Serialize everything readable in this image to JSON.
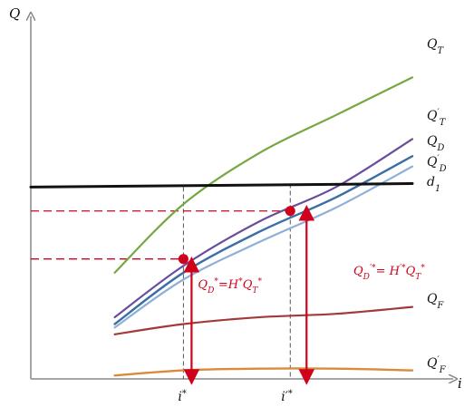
{
  "chart_data": {
    "type": "line",
    "axes": {
      "x_label": "i",
      "y_label": "Q",
      "x_ticks": [
        "i*",
        "i′*"
      ]
    },
    "colors": {
      "Q_T": "#74a840",
      "Q_T_prime": "#6a4c9c",
      "Q_D": "#3a6ea5",
      "Q_D_prime": "#8eb0d8",
      "d1": "#111111",
      "Q_F": "#a33a3a",
      "Q_F_prime": "#d98a3a",
      "annotation": "#d0021b",
      "guide": "#555555"
    },
    "series": [
      {
        "name": "Q_T",
        "x": [
          0.22,
          0.4,
          0.6,
          0.8,
          1.0
        ],
        "y": [
          0.31,
          0.51,
          0.66,
          0.77,
          0.88
        ]
      },
      {
        "name": "Q'_T",
        "x": [
          0.22,
          0.4,
          0.6,
          0.8,
          1.0
        ],
        "y": [
          0.18,
          0.33,
          0.46,
          0.56,
          0.7
        ]
      },
      {
        "name": "Q_D",
        "x": [
          0.22,
          0.4,
          0.6,
          0.8,
          1.0
        ],
        "y": [
          0.16,
          0.31,
          0.43,
          0.53,
          0.65
        ]
      },
      {
        "name": "Q_D'",
        "x": [
          0.22,
          0.4,
          0.6,
          0.8,
          1.0
        ],
        "y": [
          0.15,
          0.29,
          0.4,
          0.5,
          0.62
        ]
      },
      {
        "name": "d_1",
        "x": [
          0.0,
          1.0
        ],
        "y": [
          0.56,
          0.57
        ]
      },
      {
        "name": "Q_F",
        "x": [
          0.22,
          0.4,
          0.6,
          0.8,
          1.0
        ],
        "y": [
          0.13,
          0.16,
          0.18,
          0.19,
          0.21
        ]
      },
      {
        "name": "Q_F'",
        "x": [
          0.22,
          0.4,
          0.6,
          0.8,
          1.0
        ],
        "y": [
          0.01,
          0.025,
          0.03,
          0.03,
          0.025
        ]
      }
    ],
    "points": [
      {
        "name": "Q_D*",
        "x": 0.4,
        "y": 0.35
      },
      {
        "name": "Q_D′*",
        "x": 0.68,
        "y": 0.49
      }
    ],
    "guides": {
      "i_star": 0.4,
      "i_prime_star": 0.68,
      "d1_at_i_star": 0.56,
      "d1_at_i_prime_star": 0.57
    },
    "annotations": {
      "left": {
        "lhs": "Q",
        "lhs_sub": "D",
        "lhs_sup": "*",
        "eq": "=H",
        "eq_sup": "*",
        "rhs": "Q",
        "rhs_sub": "T",
        "rhs_sup": "*"
      },
      "right": {
        "lhs": "Q",
        "lhs_sub": "D",
        "lhs_sup": "′*",
        "eq": "= H",
        "eq_sup": "′*",
        "rhs": "Q",
        "rhs_sub": "T",
        "rhs_sup": "*"
      }
    },
    "labels": {
      "Q_T": {
        "base": "Q",
        "sub": "T",
        "sup": ""
      },
      "Q_T_prime": {
        "base": "Q",
        "sub": "T",
        "sup": "′"
      },
      "Q_D": {
        "base": "Q",
        "sub": "D",
        "sup": ""
      },
      "Q_D_prime": {
        "base": "Q",
        "sub": "D",
        "sup": "′"
      },
      "d1": {
        "base": "d",
        "sub": "1",
        "sup": ""
      },
      "Q_F": {
        "base": "Q",
        "sub": "F",
        "sup": ""
      },
      "Q_F_prime": {
        "base": "Q",
        "sub": "F",
        "sup": "′"
      }
    }
  }
}
